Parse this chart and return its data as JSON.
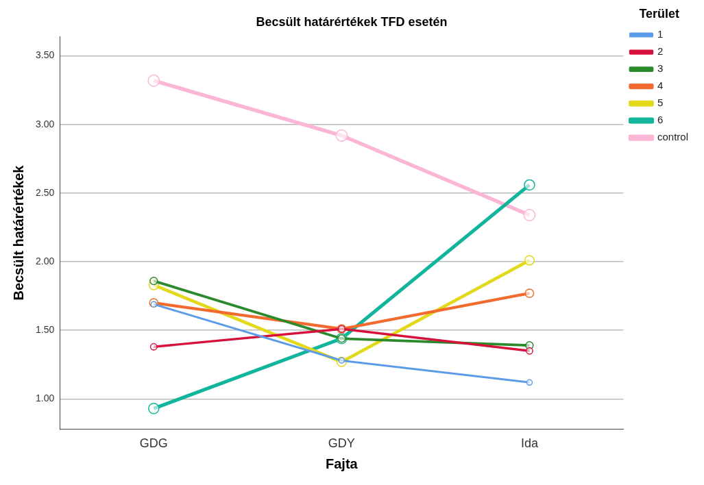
{
  "chart_data": {
    "type": "line",
    "title": "Becsült határértékek TFD esetén",
    "xlabel": "Fajta",
    "ylabel": "Becsült határértékek",
    "legend_title": "Terület",
    "categories": [
      "GDG",
      "GDY",
      "Ida"
    ],
    "series": [
      {
        "name": "1",
        "color": "#5b9be8",
        "values": [
          1.69,
          1.28,
          1.12
        ]
      },
      {
        "name": "2",
        "color": "#d6113c",
        "values": [
          1.38,
          1.51,
          1.35
        ]
      },
      {
        "name": "3",
        "color": "#2b8a2b",
        "values": [
          1.86,
          1.44,
          1.39
        ]
      },
      {
        "name": "4",
        "color": "#f26b2e",
        "values": [
          1.7,
          1.51,
          1.77
        ]
      },
      {
        "name": "5",
        "color": "#e3d81a",
        "values": [
          1.83,
          1.27,
          2.01
        ]
      },
      {
        "name": "6",
        "color": "#10b59b",
        "values": [
          0.93,
          1.44,
          2.56
        ]
      },
      {
        "name": "control",
        "color": "#fbb6d6",
        "values": [
          3.32,
          2.92,
          2.34
        ]
      }
    ],
    "ylim": [
      0.78,
      3.64
    ],
    "yticks": [
      {
        "value": 1,
        "label": "1.00"
      },
      {
        "value": 1.5,
        "label": "1.50"
      },
      {
        "value": 2,
        "label": "2.00"
      },
      {
        "value": 2.5,
        "label": "2.50"
      },
      {
        "value": 3,
        "label": "3.00"
      },
      {
        "value": 3.5,
        "label": "3.50"
      }
    ],
    "grid": "y",
    "legend": "right",
    "marker": "circle",
    "line_style": "solid"
  }
}
